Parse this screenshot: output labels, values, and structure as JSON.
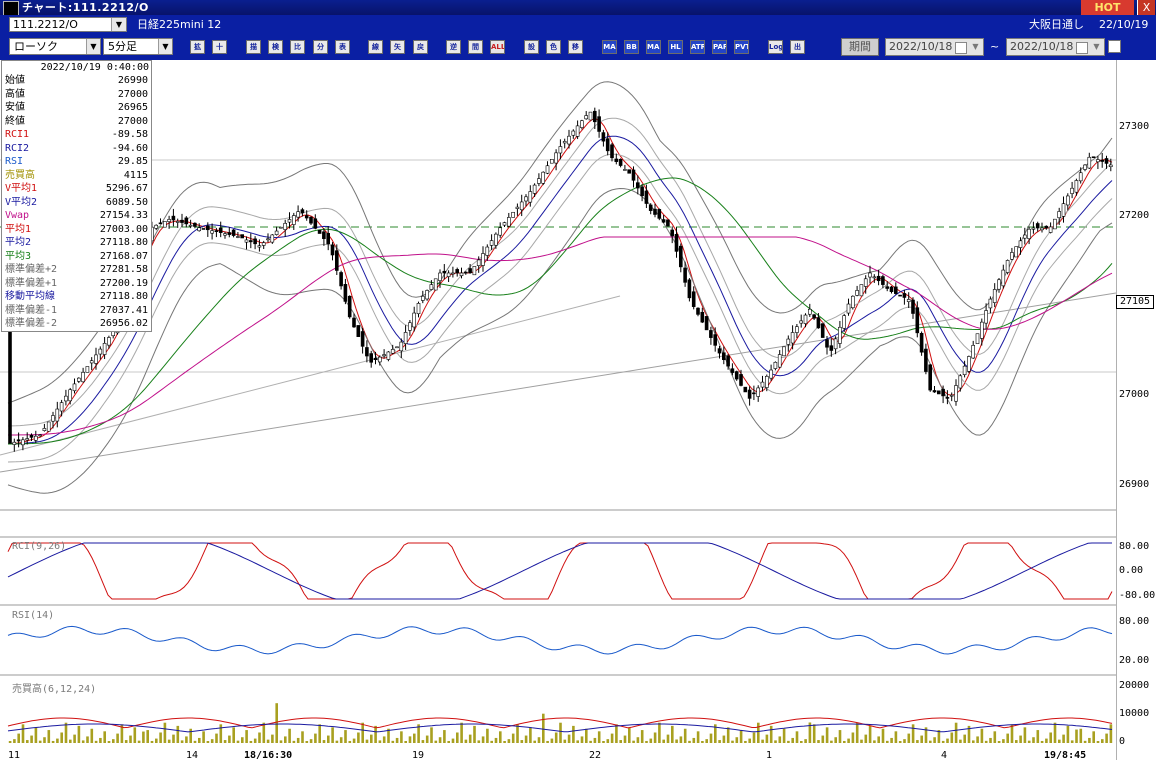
{
  "titlebar": {
    "title": "チャート:111.2212/O",
    "hot": "HOT",
    "close": "X"
  },
  "header": {
    "symbol": "111.2212/O",
    "name": "日経225mini 12",
    "session": "大阪日通し",
    "date": "22/10/19"
  },
  "toolbar": {
    "chart_type": "ローソク",
    "interval": "5分足",
    "buttons": [
      "拡大",
      "十字",
      "描画",
      "検索",
      "比較",
      "分割",
      "表示",
      "線",
      "矢印",
      "戻",
      "逆",
      "間",
      "ALL",
      "設定",
      "色",
      "移動",
      "MA",
      "BB",
      "MAE",
      "HL",
      "ATR",
      "PARA",
      "PVT",
      "Log",
      "出力"
    ],
    "period_label": "期間",
    "from_date": "2022/10/18",
    "to_date": "2022/10/18",
    "range_sep": "~"
  },
  "info_panel": {
    "datetime": "2022/10/19 0:40:00",
    "rows": [
      {
        "label": "始値",
        "value": "26990",
        "color": "#000000"
      },
      {
        "label": "高値",
        "value": "27000",
        "color": "#000000"
      },
      {
        "label": "安値",
        "value": "26965",
        "color": "#000000"
      },
      {
        "label": "終値",
        "value": "27000",
        "color": "#000000"
      },
      {
        "label": "RCI1",
        "value": "-89.58",
        "color": "#d01010"
      },
      {
        "label": "RCI2",
        "value": "-94.60",
        "color": "#1a1aa0"
      },
      {
        "label": "RSI",
        "value": "29.85",
        "color": "#1a5acb"
      },
      {
        "label": "売買高",
        "value": "4115",
        "color": "#a09000"
      },
      {
        "label": "V平均1",
        "value": "5296.67",
        "color": "#d01010"
      },
      {
        "label": "V平均2",
        "value": "6089.50",
        "color": "#1a1aa0"
      },
      {
        "label": "Vwap",
        "value": "27154.33",
        "color": "#c0108a"
      },
      {
        "label": "平均1",
        "value": "27003.00",
        "color": "#d01010"
      },
      {
        "label": "平均2",
        "value": "27118.80",
        "color": "#1a1aa0"
      },
      {
        "label": "平均3",
        "value": "27168.07",
        "color": "#18801a"
      },
      {
        "label": "標準偏差+2",
        "value": "27281.58",
        "color": "#666666"
      },
      {
        "label": "標準偏差+1",
        "value": "27200.19",
        "color": "#666666"
      },
      {
        "label": "移動平均線",
        "value": "27118.80",
        "color": "#1a1aa0"
      },
      {
        "label": "標準偏差-1",
        "value": "27037.41",
        "color": "#666666"
      },
      {
        "label": "標準偏差-2",
        "value": "26956.02",
        "color": "#666666"
      }
    ]
  },
  "price_axis": {
    "labels": [
      "27300",
      "27200",
      "27000",
      "26900"
    ],
    "current": "27105"
  },
  "rci_panel": {
    "label": "RCI(9,26)",
    "axis": [
      "80.00",
      "0.00",
      "-80.00"
    ]
  },
  "rsi_panel": {
    "label": "RSI(14)",
    "axis": [
      "80.00",
      "20.00"
    ]
  },
  "vol_panel": {
    "label": "売買高(6,12,24)",
    "axis": [
      "20000",
      "10000",
      "0"
    ]
  },
  "time_axis": [
    "11",
    "14",
    "18/16:30",
    "19",
    "22",
    "1",
    "4",
    "19/8:45"
  ],
  "colors": {
    "up": "#ffffff",
    "down": "#000000",
    "ma1": "#d01010",
    "ma2": "#1a1aa0",
    "ma3": "#18801a",
    "vwap": "#c0108a",
    "band": "#777777",
    "volume": "#a8a020"
  }
}
